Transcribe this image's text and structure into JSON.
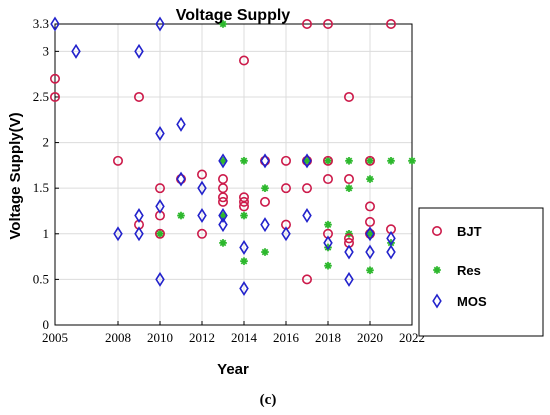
{
  "chart_data": {
    "type": "scatter",
    "title": "Voltage Supply",
    "xlabel": "Year",
    "ylabel": "Voltage Supply(V)",
    "caption": "(c)",
    "xlim": [
      2005,
      2022
    ],
    "ylim": [
      0,
      3.3
    ],
    "xticks": [
      2005,
      2008,
      2010,
      2012,
      2014,
      2016,
      2018,
      2020,
      2022
    ],
    "yticks": [
      0,
      0.5,
      1,
      1.5,
      2,
      2.5,
      3,
      3.3
    ],
    "xtick_labels": [
      "2005",
      "2008",
      "2010",
      "2012",
      "2014",
      "2016",
      "2018",
      "2020",
      "2022"
    ],
    "ytick_labels": [
      "0",
      "0.5",
      "1",
      "1.5",
      "2",
      "2.5",
      "3",
      "3.3"
    ],
    "grid": true,
    "legend_position": "outside-right",
    "series": [
      {
        "name": "BJT",
        "marker": "circle",
        "color": "#cc1a4a",
        "points": [
          [
            2005,
            2.7
          ],
          [
            2005,
            2.5
          ],
          [
            2008,
            1.8
          ],
          [
            2009,
            2.5
          ],
          [
            2009,
            1.1
          ],
          [
            2010,
            1.5
          ],
          [
            2010,
            1.2
          ],
          [
            2010,
            1.0
          ],
          [
            2011,
            1.6
          ],
          [
            2012,
            1.65
          ],
          [
            2012,
            1.0
          ],
          [
            2013,
            1.6
          ],
          [
            2013,
            1.5
          ],
          [
            2013,
            1.4
          ],
          [
            2013,
            1.35
          ],
          [
            2014,
            2.9
          ],
          [
            2014,
            1.4
          ],
          [
            2014,
            1.35
          ],
          [
            2014,
            1.3
          ],
          [
            2015,
            1.8
          ],
          [
            2015,
            1.35
          ],
          [
            2016,
            1.8
          ],
          [
            2016,
            1.5
          ],
          [
            2016,
            1.1
          ],
          [
            2017,
            3.3
          ],
          [
            2017,
            1.8
          ],
          [
            2017,
            1.5
          ],
          [
            2017,
            0.5
          ],
          [
            2018,
            3.3
          ],
          [
            2018,
            1.8
          ],
          [
            2018,
            1.6
          ],
          [
            2018,
            1.0
          ],
          [
            2019,
            2.5
          ],
          [
            2019,
            1.6
          ],
          [
            2019,
            0.95
          ],
          [
            2019,
            0.9
          ],
          [
            2020,
            1.8
          ],
          [
            2020,
            1.3
          ],
          [
            2020,
            1.13
          ],
          [
            2020,
            1.0
          ],
          [
            2021,
            3.3
          ],
          [
            2021,
            1.05
          ]
        ]
      },
      {
        "name": "Res",
        "marker": "star",
        "color": "#2db82d",
        "points": [
          [
            2010,
            1.0
          ],
          [
            2011,
            1.2
          ],
          [
            2013,
            3.3
          ],
          [
            2013,
            1.8
          ],
          [
            2013,
            1.2
          ],
          [
            2013,
            0.9
          ],
          [
            2014,
            1.8
          ],
          [
            2014,
            1.2
          ],
          [
            2014,
            0.7
          ],
          [
            2015,
            1.5
          ],
          [
            2015,
            0.8
          ],
          [
            2017,
            1.8
          ],
          [
            2018,
            1.8
          ],
          [
            2018,
            1.1
          ],
          [
            2018,
            0.85
          ],
          [
            2018,
            0.65
          ],
          [
            2019,
            1.8
          ],
          [
            2019,
            1.5
          ],
          [
            2019,
            1.0
          ],
          [
            2020,
            1.8
          ],
          [
            2020,
            1.6
          ],
          [
            2020,
            1.0
          ],
          [
            2020,
            0.6
          ],
          [
            2021,
            1.8
          ],
          [
            2021,
            0.9
          ],
          [
            2022,
            1.8
          ]
        ]
      },
      {
        "name": "MOS",
        "marker": "diamond",
        "color": "#2222cc",
        "points": [
          [
            2005,
            3.3
          ],
          [
            2006,
            3.0
          ],
          [
            2008,
            1.0
          ],
          [
            2009,
            3.0
          ],
          [
            2009,
            1.2
          ],
          [
            2009,
            1.0
          ],
          [
            2010,
            3.3
          ],
          [
            2010,
            2.1
          ],
          [
            2010,
            1.3
          ],
          [
            2010,
            0.5
          ],
          [
            2011,
            2.2
          ],
          [
            2011,
            1.6
          ],
          [
            2012,
            1.5
          ],
          [
            2012,
            1.2
          ],
          [
            2013,
            1.8
          ],
          [
            2013,
            1.2
          ],
          [
            2013,
            1.1
          ],
          [
            2014,
            0.85
          ],
          [
            2014,
            0.4
          ],
          [
            2015,
            1.8
          ],
          [
            2015,
            1.1
          ],
          [
            2016,
            1.0
          ],
          [
            2017,
            1.8
          ],
          [
            2017,
            1.2
          ],
          [
            2018,
            0.9
          ],
          [
            2019,
            0.8
          ],
          [
            2019,
            0.5
          ],
          [
            2020,
            1.0
          ],
          [
            2020,
            0.8
          ],
          [
            2021,
            0.95
          ],
          [
            2021,
            0.8
          ]
        ]
      }
    ]
  }
}
